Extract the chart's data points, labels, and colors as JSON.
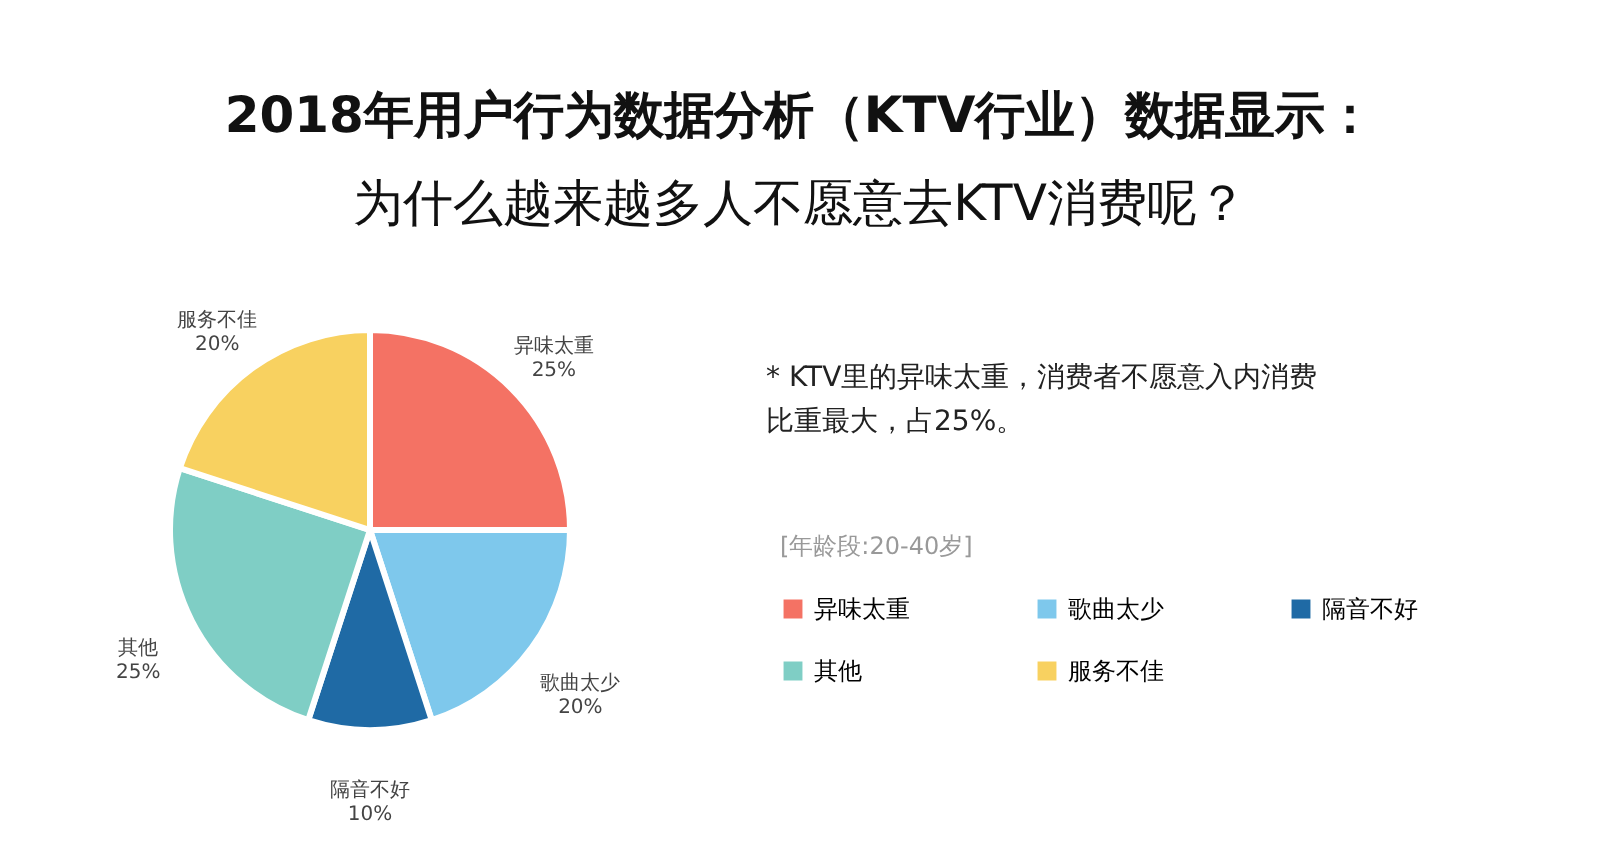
{
  "chart_data": {
    "type": "pie",
    "title": "2018年用户行为数据分析（KTV行业）数据显示：",
    "subtitle": "为什么越来越多人不愿意去KTV消费呢？",
    "value_labels": [
      "25%",
      "20%",
      "10%",
      "25%",
      "20%"
    ],
    "categories": [
      "异味太重",
      "歌曲太少",
      "隔音不好",
      "其他",
      "服务不佳"
    ],
    "values": [
      25,
      20,
      10,
      25,
      20
    ],
    "colors": [
      "#f47264",
      "#7ec8ec",
      "#1f6aa5",
      "#7fcec5",
      "#f8d160"
    ],
    "legend_title": "[年龄段:20-40岁]",
    "legend": "right",
    "annotations": [
      "* KTV里的异味太重，消费者不愿意入内消费比重最大，占25%。"
    ]
  }
}
